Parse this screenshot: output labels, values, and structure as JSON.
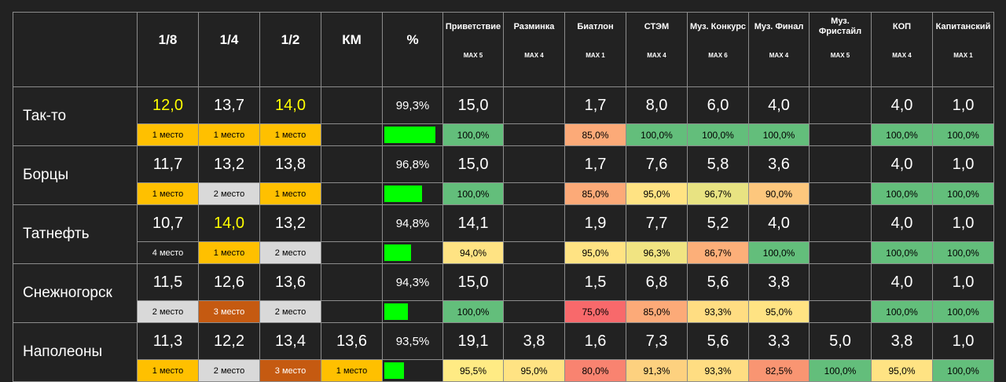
{
  "header": {
    "rounds": [
      "1/8",
      "1/4",
      "1/2",
      "КМ",
      "%"
    ],
    "contests": [
      {
        "name": "Приветствие",
        "max": "MAX 5"
      },
      {
        "name": "Разминка",
        "max": "MAX 4"
      },
      {
        "name": "Биатлон",
        "max": "MAX 1"
      },
      {
        "name": "СТЭМ",
        "max": "MAX 4"
      },
      {
        "name": "Муз. Конкурс",
        "max": "MAX 6"
      },
      {
        "name": "Муз. Финал",
        "max": "MAX 4"
      },
      {
        "name": "Муз. Фристайл",
        "max": "MAX 5"
      },
      {
        "name": "КОП",
        "max": "MAX 4"
      },
      {
        "name": "Капитанский",
        "max": "MAX 1"
      }
    ]
  },
  "colors": {
    "green": "#63be7b",
    "light_green": "#a9d18e",
    "yellow": "#ffeb84",
    "light_orange": "#fdd17f",
    "orange": "#fcb57a",
    "salmon": "#f8a077",
    "red": "#f8696b",
    "place_1": "#ffc000",
    "place_2": "#d9d9d9",
    "place_3": "#c55a11"
  },
  "teams": [
    {
      "name": "Так-то",
      "rounds": [
        {
          "value": "12,0",
          "highlight": true,
          "place": "1 место",
          "place_rank": 1
        },
        {
          "value": "13,7",
          "highlight": false,
          "place": "1 место",
          "place_rank": 1
        },
        {
          "value": "14,0",
          "highlight": true,
          "place": "1 место",
          "place_rank": 1
        },
        {
          "value": "",
          "highlight": false,
          "place": "",
          "place_rank": 0
        }
      ],
      "percent": "99,3%",
      "percent_fraction": 0.993,
      "contests": [
        {
          "value": "15,0",
          "pct": "100,0%",
          "color": "#63be7b"
        },
        {
          "value": "",
          "pct": "",
          "color": ""
        },
        {
          "value": "1,7",
          "pct": "85,0%",
          "color": "#fcaa78"
        },
        {
          "value": "8,0",
          "pct": "100,0%",
          "color": "#63be7b"
        },
        {
          "value": "6,0",
          "pct": "100,0%",
          "color": "#63be7b"
        },
        {
          "value": "4,0",
          "pct": "100,0%",
          "color": "#63be7b"
        },
        {
          "value": "",
          "pct": "",
          "color": ""
        },
        {
          "value": "4,0",
          "pct": "100,0%",
          "color": "#63be7b"
        },
        {
          "value": "1,0",
          "pct": "100,0%",
          "color": "#63be7b"
        }
      ]
    },
    {
      "name": "Борцы",
      "rounds": [
        {
          "value": "11,7",
          "highlight": false,
          "place": "1 место",
          "place_rank": 1
        },
        {
          "value": "13,2",
          "highlight": false,
          "place": "2 место",
          "place_rank": 2
        },
        {
          "value": "13,8",
          "highlight": false,
          "place": "1 место",
          "place_rank": 1
        },
        {
          "value": "",
          "highlight": false,
          "place": "",
          "place_rank": 0
        }
      ],
      "percent": "96,8%",
      "percent_fraction": 0.968,
      "contests": [
        {
          "value": "15,0",
          "pct": "100,0%",
          "color": "#63be7b"
        },
        {
          "value": "",
          "pct": "",
          "color": ""
        },
        {
          "value": "1,7",
          "pct": "85,0%",
          "color": "#fcaa78"
        },
        {
          "value": "7,6",
          "pct": "95,0%",
          "color": "#ffe383"
        },
        {
          "value": "5,8",
          "pct": "96,7%",
          "color": "#e8e382"
        },
        {
          "value": "3,6",
          "pct": "90,0%",
          "color": "#fdc77d"
        },
        {
          "value": "",
          "pct": "",
          "color": ""
        },
        {
          "value": "4,0",
          "pct": "100,0%",
          "color": "#63be7b"
        },
        {
          "value": "1,0",
          "pct": "100,0%",
          "color": "#63be7b"
        }
      ]
    },
    {
      "name": "Татнефть",
      "rounds": [
        {
          "value": "10,7",
          "highlight": false,
          "place": "4 место",
          "place_rank": 4
        },
        {
          "value": "14,0",
          "highlight": true,
          "place": "1 место",
          "place_rank": 1
        },
        {
          "value": "13,2",
          "highlight": false,
          "place": "2 место",
          "place_rank": 2
        },
        {
          "value": "",
          "highlight": false,
          "place": "",
          "place_rank": 0
        }
      ],
      "percent": "94,8%",
      "percent_fraction": 0.948,
      "contests": [
        {
          "value": "14,1",
          "pct": "94,0%",
          "color": "#ffe383"
        },
        {
          "value": "",
          "pct": "",
          "color": ""
        },
        {
          "value": "1,9",
          "pct": "95,0%",
          "color": "#ffe383"
        },
        {
          "value": "7,7",
          "pct": "96,3%",
          "color": "#f1e482"
        },
        {
          "value": "5,2",
          "pct": "86,7%",
          "color": "#fcaf79"
        },
        {
          "value": "4,0",
          "pct": "100,0%",
          "color": "#63be7b"
        },
        {
          "value": "",
          "pct": "",
          "color": ""
        },
        {
          "value": "4,0",
          "pct": "100,0%",
          "color": "#63be7b"
        },
        {
          "value": "1,0",
          "pct": "100,0%",
          "color": "#63be7b"
        }
      ]
    },
    {
      "name": "Снежногорск",
      "rounds": [
        {
          "value": "11,5",
          "highlight": false,
          "place": "2 место",
          "place_rank": 2
        },
        {
          "value": "12,6",
          "highlight": false,
          "place": "3 место",
          "place_rank": 3
        },
        {
          "value": "13,6",
          "highlight": false,
          "place": "2 место",
          "place_rank": 2
        },
        {
          "value": "",
          "highlight": false,
          "place": "",
          "place_rank": 0
        }
      ],
      "percent": "94,3%",
      "percent_fraction": 0.943,
      "contests": [
        {
          "value": "15,0",
          "pct": "100,0%",
          "color": "#63be7b"
        },
        {
          "value": "",
          "pct": "",
          "color": ""
        },
        {
          "value": "1,5",
          "pct": "75,0%",
          "color": "#f8696b"
        },
        {
          "value": "6,8",
          "pct": "85,0%",
          "color": "#fcaa78"
        },
        {
          "value": "5,6",
          "pct": "93,3%",
          "color": "#ffdd82"
        },
        {
          "value": "3,8",
          "pct": "95,0%",
          "color": "#ffe383"
        },
        {
          "value": "",
          "pct": "",
          "color": ""
        },
        {
          "value": "4,0",
          "pct": "100,0%",
          "color": "#63be7b"
        },
        {
          "value": "1,0",
          "pct": "100,0%",
          "color": "#63be7b"
        }
      ]
    },
    {
      "name": "Наполеоны",
      "rounds": [
        {
          "value": "11,3",
          "highlight": false,
          "place": "1 место",
          "place_rank": 1
        },
        {
          "value": "12,2",
          "highlight": false,
          "place": "2 место",
          "place_rank": 2
        },
        {
          "value": "13,4",
          "highlight": false,
          "place": "3 место",
          "place_rank": 3
        },
        {
          "value": "13,6",
          "highlight": false,
          "place": "1 место",
          "place_rank": 1
        }
      ],
      "percent": "93,5%",
      "percent_fraction": 0.935,
      "contests": [
        {
          "value": "19,1",
          "pct": "95,5%",
          "color": "#ffeb84"
        },
        {
          "value": "3,8",
          "pct": "95,0%",
          "color": "#ffe383"
        },
        {
          "value": "1,6",
          "pct": "80,0%",
          "color": "#f98370"
        },
        {
          "value": "7,3",
          "pct": "91,3%",
          "color": "#fdd17f"
        },
        {
          "value": "5,6",
          "pct": "93,3%",
          "color": "#ffdd82"
        },
        {
          "value": "3,3",
          "pct": "82,5%",
          "color": "#f99572"
        },
        {
          "value": "5,0",
          "pct": "100,0%",
          "color": "#63be7b"
        },
        {
          "value": "3,8",
          "pct": "95,0%",
          "color": "#ffe383"
        },
        {
          "value": "1,0",
          "pct": "100,0%",
          "color": "#63be7b"
        }
      ]
    }
  ]
}
